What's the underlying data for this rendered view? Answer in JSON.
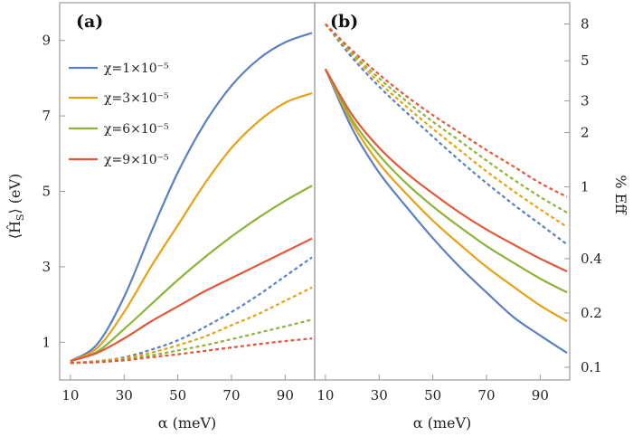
{
  "chart_data": [
    {
      "type": "line",
      "panel_label": "(a)",
      "xlabel": "α (meV)",
      "ylabel": "⟨Ĥ_S⟩ (eV)",
      "ylabel_parts": {
        "symbol": "⟨Ĥ",
        "sub": "S",
        "close": "⟩",
        "unit": " (eV)"
      },
      "xlim": [
        6,
        101
      ],
      "ylim": [
        0,
        10
      ],
      "x_ticks": [
        "10",
        "30",
        "50",
        "70",
        "90"
      ],
      "y_ticks": [
        "1",
        "3",
        "5",
        "7",
        "9"
      ],
      "x": [
        10,
        20,
        30,
        40,
        50,
        60,
        70,
        80,
        90,
        100
      ],
      "series": [
        {
          "name": "χ=1×10⁻⁵",
          "style": "solid",
          "color": "#5b7fbf",
          "values": [
            0.5,
            0.95,
            2.2,
            3.9,
            5.5,
            6.8,
            7.8,
            8.5,
            8.95,
            9.2
          ]
        },
        {
          "name": "χ=3×10⁻⁵",
          "style": "solid",
          "color": "#e6a117",
          "values": [
            0.5,
            0.85,
            1.8,
            3.0,
            4.1,
            5.2,
            6.15,
            6.85,
            7.35,
            7.6
          ]
        },
        {
          "name": "χ=6×10⁻⁵",
          "style": "solid",
          "color": "#8db33a",
          "values": [
            0.5,
            0.75,
            1.35,
            2.0,
            2.65,
            3.25,
            3.8,
            4.3,
            4.75,
            5.15
          ]
        },
        {
          "name": "χ=9×10⁻⁵",
          "style": "solid",
          "color": "#e2583a",
          "values": [
            0.5,
            0.72,
            1.1,
            1.55,
            1.95,
            2.35,
            2.7,
            3.05,
            3.4,
            3.75
          ]
        },
        {
          "name": "χ=1×10⁻⁵ (dashed)",
          "style": "dashed",
          "color": "#5b7fbf",
          "values": [
            0.45,
            0.5,
            0.6,
            0.8,
            1.05,
            1.4,
            1.8,
            2.25,
            2.75,
            3.25
          ]
        },
        {
          "name": "χ=3×10⁻⁵ (dashed)",
          "style": "dashed",
          "color": "#e6a117",
          "values": [
            0.45,
            0.5,
            0.58,
            0.72,
            0.92,
            1.15,
            1.45,
            1.75,
            2.1,
            2.45
          ]
        },
        {
          "name": "χ=6×10⁻⁵ (dashed)",
          "style": "dashed",
          "color": "#8db33a",
          "values": [
            0.45,
            0.48,
            0.55,
            0.65,
            0.78,
            0.92,
            1.08,
            1.25,
            1.42,
            1.6
          ]
        },
        {
          "name": "χ=9×10⁻⁵ (dashed)",
          "style": "dashed",
          "color": "#e2583a",
          "values": [
            0.45,
            0.47,
            0.52,
            0.6,
            0.68,
            0.77,
            0.86,
            0.95,
            1.03,
            1.1
          ]
        }
      ]
    },
    {
      "type": "line",
      "panel_label": "(b)",
      "xlabel": "α (meV)",
      "ylabel": "% Eff",
      "y_scale": "log",
      "xlim": [
        6,
        101
      ],
      "ylim": [
        0.085,
        10.5
      ],
      "x_ticks": [
        "10",
        "30",
        "50",
        "70",
        "90"
      ],
      "y_ticks": [
        "0.1",
        "0.2",
        "0.4",
        "1",
        "2",
        "3",
        "5",
        "8"
      ],
      "y_tick_values": [
        0.1,
        0.2,
        0.4,
        1,
        2,
        3,
        5,
        8
      ],
      "x": [
        10,
        20,
        30,
        40,
        50,
        60,
        70,
        80,
        90,
        100
      ],
      "series": [
        {
          "name": "χ=1×10⁻⁵",
          "style": "solid",
          "color": "#5b7fbf",
          "values": [
            4.5,
            2.1,
            1.2,
            0.78,
            0.52,
            0.36,
            0.26,
            0.19,
            0.15,
            0.12
          ]
        },
        {
          "name": "χ=3×10⁻⁵",
          "style": "solid",
          "color": "#e6a117",
          "values": [
            4.5,
            2.25,
            1.35,
            0.92,
            0.65,
            0.48,
            0.36,
            0.28,
            0.22,
            0.18
          ]
        },
        {
          "name": "χ=6×10⁻⁵",
          "style": "solid",
          "color": "#8db33a",
          "values": [
            4.5,
            2.35,
            1.5,
            1.05,
            0.78,
            0.6,
            0.47,
            0.38,
            0.31,
            0.26
          ]
        },
        {
          "name": "χ=9×10⁻⁵",
          "style": "solid",
          "color": "#e2583a",
          "values": [
            4.5,
            2.5,
            1.65,
            1.2,
            0.92,
            0.72,
            0.58,
            0.48,
            0.4,
            0.34
          ]
        },
        {
          "name": "χ=1×10⁻⁵ (dashed)",
          "style": "dashed",
          "color": "#5b7fbf",
          "values": [
            8.0,
            5.2,
            3.6,
            2.6,
            1.9,
            1.4,
            1.05,
            0.8,
            0.62,
            0.48
          ]
        },
        {
          "name": "χ=3×10⁻⁵ (dashed)",
          "style": "dashed",
          "color": "#e6a117",
          "values": [
            8.0,
            5.4,
            3.8,
            2.8,
            2.1,
            1.6,
            1.22,
            0.95,
            0.75,
            0.6
          ]
        },
        {
          "name": "χ=6×10⁻⁵ (dashed)",
          "style": "dashed",
          "color": "#8db33a",
          "values": [
            8.0,
            5.5,
            4.0,
            3.0,
            2.3,
            1.8,
            1.4,
            1.1,
            0.88,
            0.72
          ]
        },
        {
          "name": "χ=9×10⁻⁵ (dashed)",
          "style": "dashed",
          "color": "#e2583a",
          "values": [
            8.0,
            5.7,
            4.2,
            3.2,
            2.5,
            2.0,
            1.6,
            1.3,
            1.05,
            0.88
          ]
        }
      ]
    }
  ],
  "legend": {
    "position": "top-left of panel (a)",
    "entries": [
      {
        "label": "χ=1×10⁻⁵",
        "color": "#5b7fbf"
      },
      {
        "label": "χ=3×10⁻⁵",
        "color": "#e6a117"
      },
      {
        "label": "χ=6×10⁻⁵",
        "color": "#8db33a"
      },
      {
        "label": "χ=9×10⁻⁵",
        "color": "#e2583a"
      }
    ]
  }
}
